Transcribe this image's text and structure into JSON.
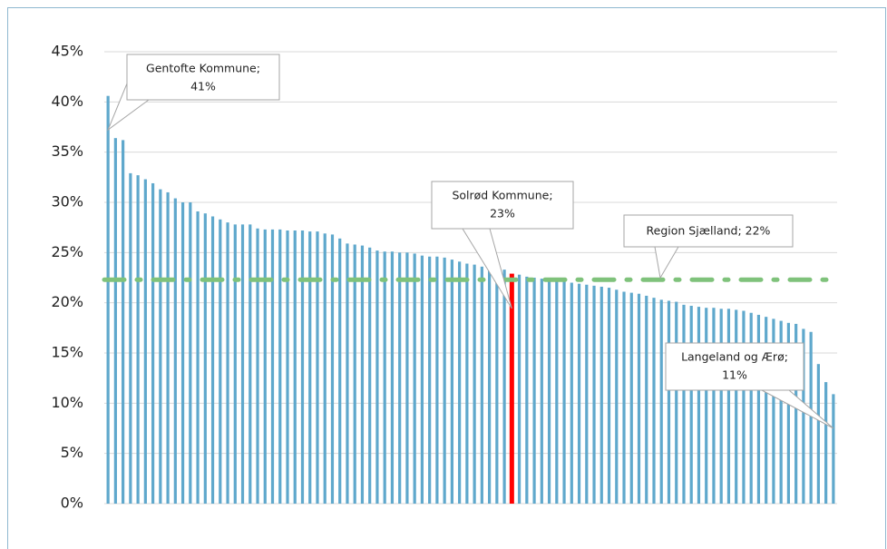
{
  "chart_data": {
    "type": "bar",
    "categories": [
      null,
      null,
      null,
      null,
      null,
      null,
      null,
      null,
      null,
      null,
      null,
      null,
      null,
      null,
      null,
      null,
      null,
      null,
      null,
      null,
      null,
      null,
      null,
      null,
      null,
      null,
      null,
      null,
      null,
      null,
      null,
      null,
      null,
      null,
      null,
      null,
      null,
      null,
      null,
      null,
      null,
      null,
      null,
      null,
      null,
      null,
      null,
      null,
      null,
      null,
      null,
      null,
      null,
      null,
      null,
      null,
      null,
      null,
      null,
      null,
      null,
      null,
      null,
      null,
      null,
      null,
      null,
      null,
      null,
      null,
      null,
      null,
      null,
      null,
      null,
      null,
      null,
      null,
      null,
      null,
      null,
      null,
      null,
      null,
      null,
      null,
      null,
      null,
      null,
      null,
      null,
      null,
      null,
      null,
      null,
      null,
      null,
      null
    ],
    "values": [
      40.6,
      36.4,
      36.2,
      32.9,
      32.7,
      32.3,
      31.9,
      31.3,
      31.0,
      30.4,
      30.0,
      30.0,
      29.1,
      28.9,
      28.6,
      28.3,
      28.0,
      27.8,
      27.8,
      27.8,
      27.4,
      27.3,
      27.3,
      27.3,
      27.2,
      27.2,
      27.2,
      27.1,
      27.1,
      26.9,
      26.8,
      26.4,
      25.9,
      25.8,
      25.7,
      25.5,
      25.2,
      25.1,
      25.1,
      25.0,
      25.0,
      24.9,
      24.7,
      24.6,
      24.6,
      24.5,
      24.3,
      24.1,
      23.9,
      23.8,
      23.6,
      23.5,
      23.4,
      23.3,
      22.9,
      22.8,
      22.6,
      22.5,
      22.4,
      22.3,
      22.2,
      22.1,
      22.0,
      21.9,
      21.8,
      21.7,
      21.6,
      21.5,
      21.3,
      21.1,
      21.0,
      20.9,
      20.7,
      20.5,
      20.3,
      20.2,
      20.1,
      19.8,
      19.7,
      19.6,
      19.5,
      19.5,
      19.4,
      19.4,
      19.3,
      19.2,
      19.0,
      18.8,
      18.6,
      18.4,
      18.2,
      18.0,
      17.9,
      17.4,
      17.1,
      13.9,
      12.1,
      10.9
    ],
    "color": "#5fa8cc",
    "highlight": {
      "index": 54,
      "color": "#ff0000"
    },
    "reference_line": {
      "value": 22.3,
      "label": "Region Sjælland; 22%",
      "color": "#7fc27b"
    },
    "annotations": [
      {
        "index": 0,
        "text": "Gentofte Kommune;",
        "value_label": "41%"
      },
      {
        "index": 54,
        "text": "Solrød Kommune;",
        "value_label": "23%"
      },
      {
        "index": 97,
        "text": "Langeland og Ærø;",
        "value_label": "11%"
      }
    ],
    "ylim": [
      0,
      45
    ],
    "yticks": [
      {
        "value": 0,
        "label": "0%"
      },
      {
        "value": 5,
        "label": "5%"
      },
      {
        "value": 10,
        "label": "10%"
      },
      {
        "value": 15,
        "label": "15%"
      },
      {
        "value": 20,
        "label": "20%"
      },
      {
        "value": 25,
        "label": "25%"
      },
      {
        "value": 30,
        "label": "30%"
      },
      {
        "value": 35,
        "label": "35%"
      },
      {
        "value": 40,
        "label": "40%"
      },
      {
        "value": 45,
        "label": "45%"
      }
    ],
    "grid": true
  }
}
